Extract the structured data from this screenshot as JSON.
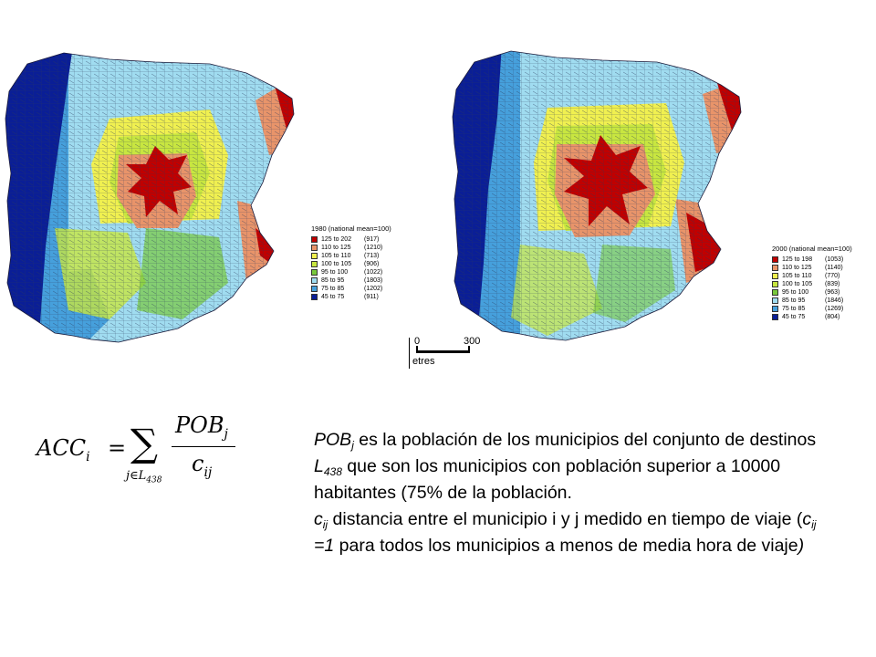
{
  "maps": [
    {
      "id": "1980",
      "legend_title": "1980 (national mean=100)",
      "classes": [
        {
          "range": "125 to 202",
          "count": "(917)",
          "color": "#c00000"
        },
        {
          "range": "110 to 125",
          "count": "(1210)",
          "color": "#e8946a"
        },
        {
          "range": "105 to 110",
          "count": "(713)",
          "color": "#f0f050"
        },
        {
          "range": "100 to 105",
          "count": "(906)",
          "color": "#c8e640"
        },
        {
          "range": "95 to 100",
          "count": "(1022)",
          "color": "#78c83c"
        },
        {
          "range": "85 to 95",
          "count": "(1803)",
          "color": "#a0dcf0"
        },
        {
          "range": "75 to 85",
          "count": "(1202)",
          "color": "#46a0dc"
        },
        {
          "range": "45 to 75",
          "count": "(911)",
          "color": "#0a1e96"
        }
      ]
    },
    {
      "id": "2000",
      "legend_title": "2000 (national mean=100)",
      "classes": [
        {
          "range": "125 to 198",
          "count": "(1053)",
          "color": "#c00000"
        },
        {
          "range": "110 to 125",
          "count": "(1140)",
          "color": "#e8946a"
        },
        {
          "range": "105 to 110",
          "count": "(770)",
          "color": "#f0f050"
        },
        {
          "range": "100 to 105",
          "count": "(839)",
          "color": "#c8e640"
        },
        {
          "range": "95 to 100",
          "count": "(963)",
          "color": "#78c83c"
        },
        {
          "range": "85 to 95",
          "count": "(1846)",
          "color": "#a0dcf0"
        },
        {
          "range": "75 to 85",
          "count": "(1269)",
          "color": "#46a0dc"
        },
        {
          "range": "45 to 75",
          "count": "(804)",
          "color": "#0a1e96"
        }
      ]
    }
  ],
  "scale_bar": {
    "start_label": "0",
    "end_label": "300",
    "unit_label": "etres"
  },
  "formula": {
    "lhs": "ACC",
    "lhs_sub": "i",
    "equals": "=",
    "sum_symbol": "∑",
    "sum_index": "j∈L",
    "sum_index_sub": "438",
    "numerator": "POB",
    "numerator_sub": "j",
    "denominator": "c",
    "denominator_sub": "ij"
  },
  "description": {
    "p1": {
      "var": "POB",
      "var_sub": "j",
      "text_a": " es la población de los municipios del conjunto de  destinos ",
      "set": "L",
      "set_sub": "438",
      "text_b": " que son los municipios con población superior a 10000 habitantes (75% de la población."
    },
    "p2": {
      "var": "c",
      "var_sub": "ij",
      "text_a": " distancia entre el municipio i y j medido en tiempo de viaje (",
      "cond_var": "c",
      "cond_sub": "ij",
      "cond_text": " =1",
      "text_b": " para todos los municipios a menos de media hora de viaje",
      "close": ")"
    }
  }
}
